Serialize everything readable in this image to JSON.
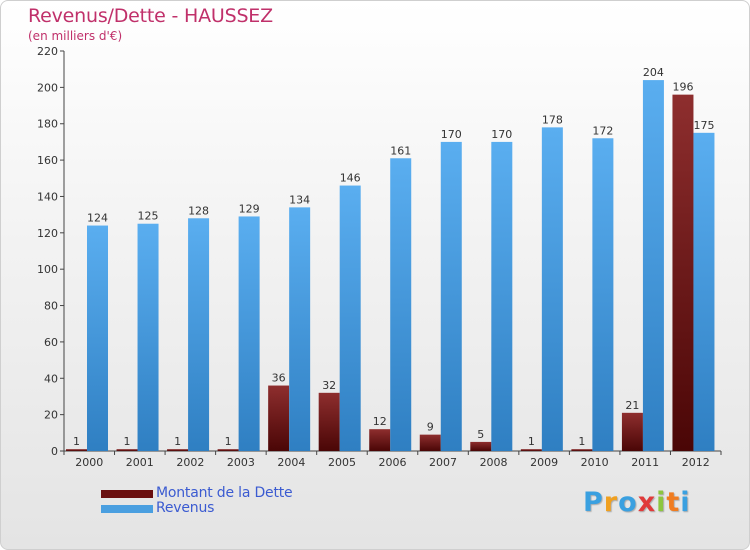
{
  "title": "Revenus/Dette - HAUSSEZ",
  "subtitle": "(en milliers d'€)",
  "logo": {
    "letters": [
      "P",
      "r",
      "o",
      "x",
      "i",
      "t",
      "i"
    ],
    "colors": [
      "#3aa0e0",
      "#f0a020",
      "#3aa0e0",
      "#e03a3a",
      "#8cc63f",
      "#f07c20",
      "#3aa0e0"
    ]
  },
  "legend": [
    {
      "label": "Montant de la Dette",
      "color": "#6a0f0f"
    },
    {
      "label": "Revenus",
      "color": "#4a9fe0"
    }
  ],
  "chart_data": {
    "type": "bar",
    "title": "Revenus/Dette - HAUSSEZ",
    "subtitle": "(en milliers d'€)",
    "categories": [
      "2000",
      "2001",
      "2002",
      "2003",
      "2004",
      "2005",
      "2006",
      "2007",
      "2008",
      "2009",
      "2010",
      "2011",
      "2012"
    ],
    "series": [
      {
        "name": "Montant de la Dette",
        "color": "#6a0f0f",
        "values": [
          1,
          1,
          1,
          1,
          36,
          32,
          12,
          9,
          5,
          1,
          1,
          21,
          196
        ]
      },
      {
        "name": "Revenus",
        "color": "#4a9fe0",
        "values": [
          124,
          125,
          128,
          129,
          134,
          146,
          161,
          170,
          170,
          178,
          172,
          204,
          175
        ]
      }
    ],
    "yticks": [
      0,
      20,
      40,
      60,
      80,
      100,
      120,
      140,
      160,
      180,
      200,
      220
    ],
    "ylim": [
      0,
      220
    ],
    "grid": false,
    "legend_position": "bottom-left"
  }
}
